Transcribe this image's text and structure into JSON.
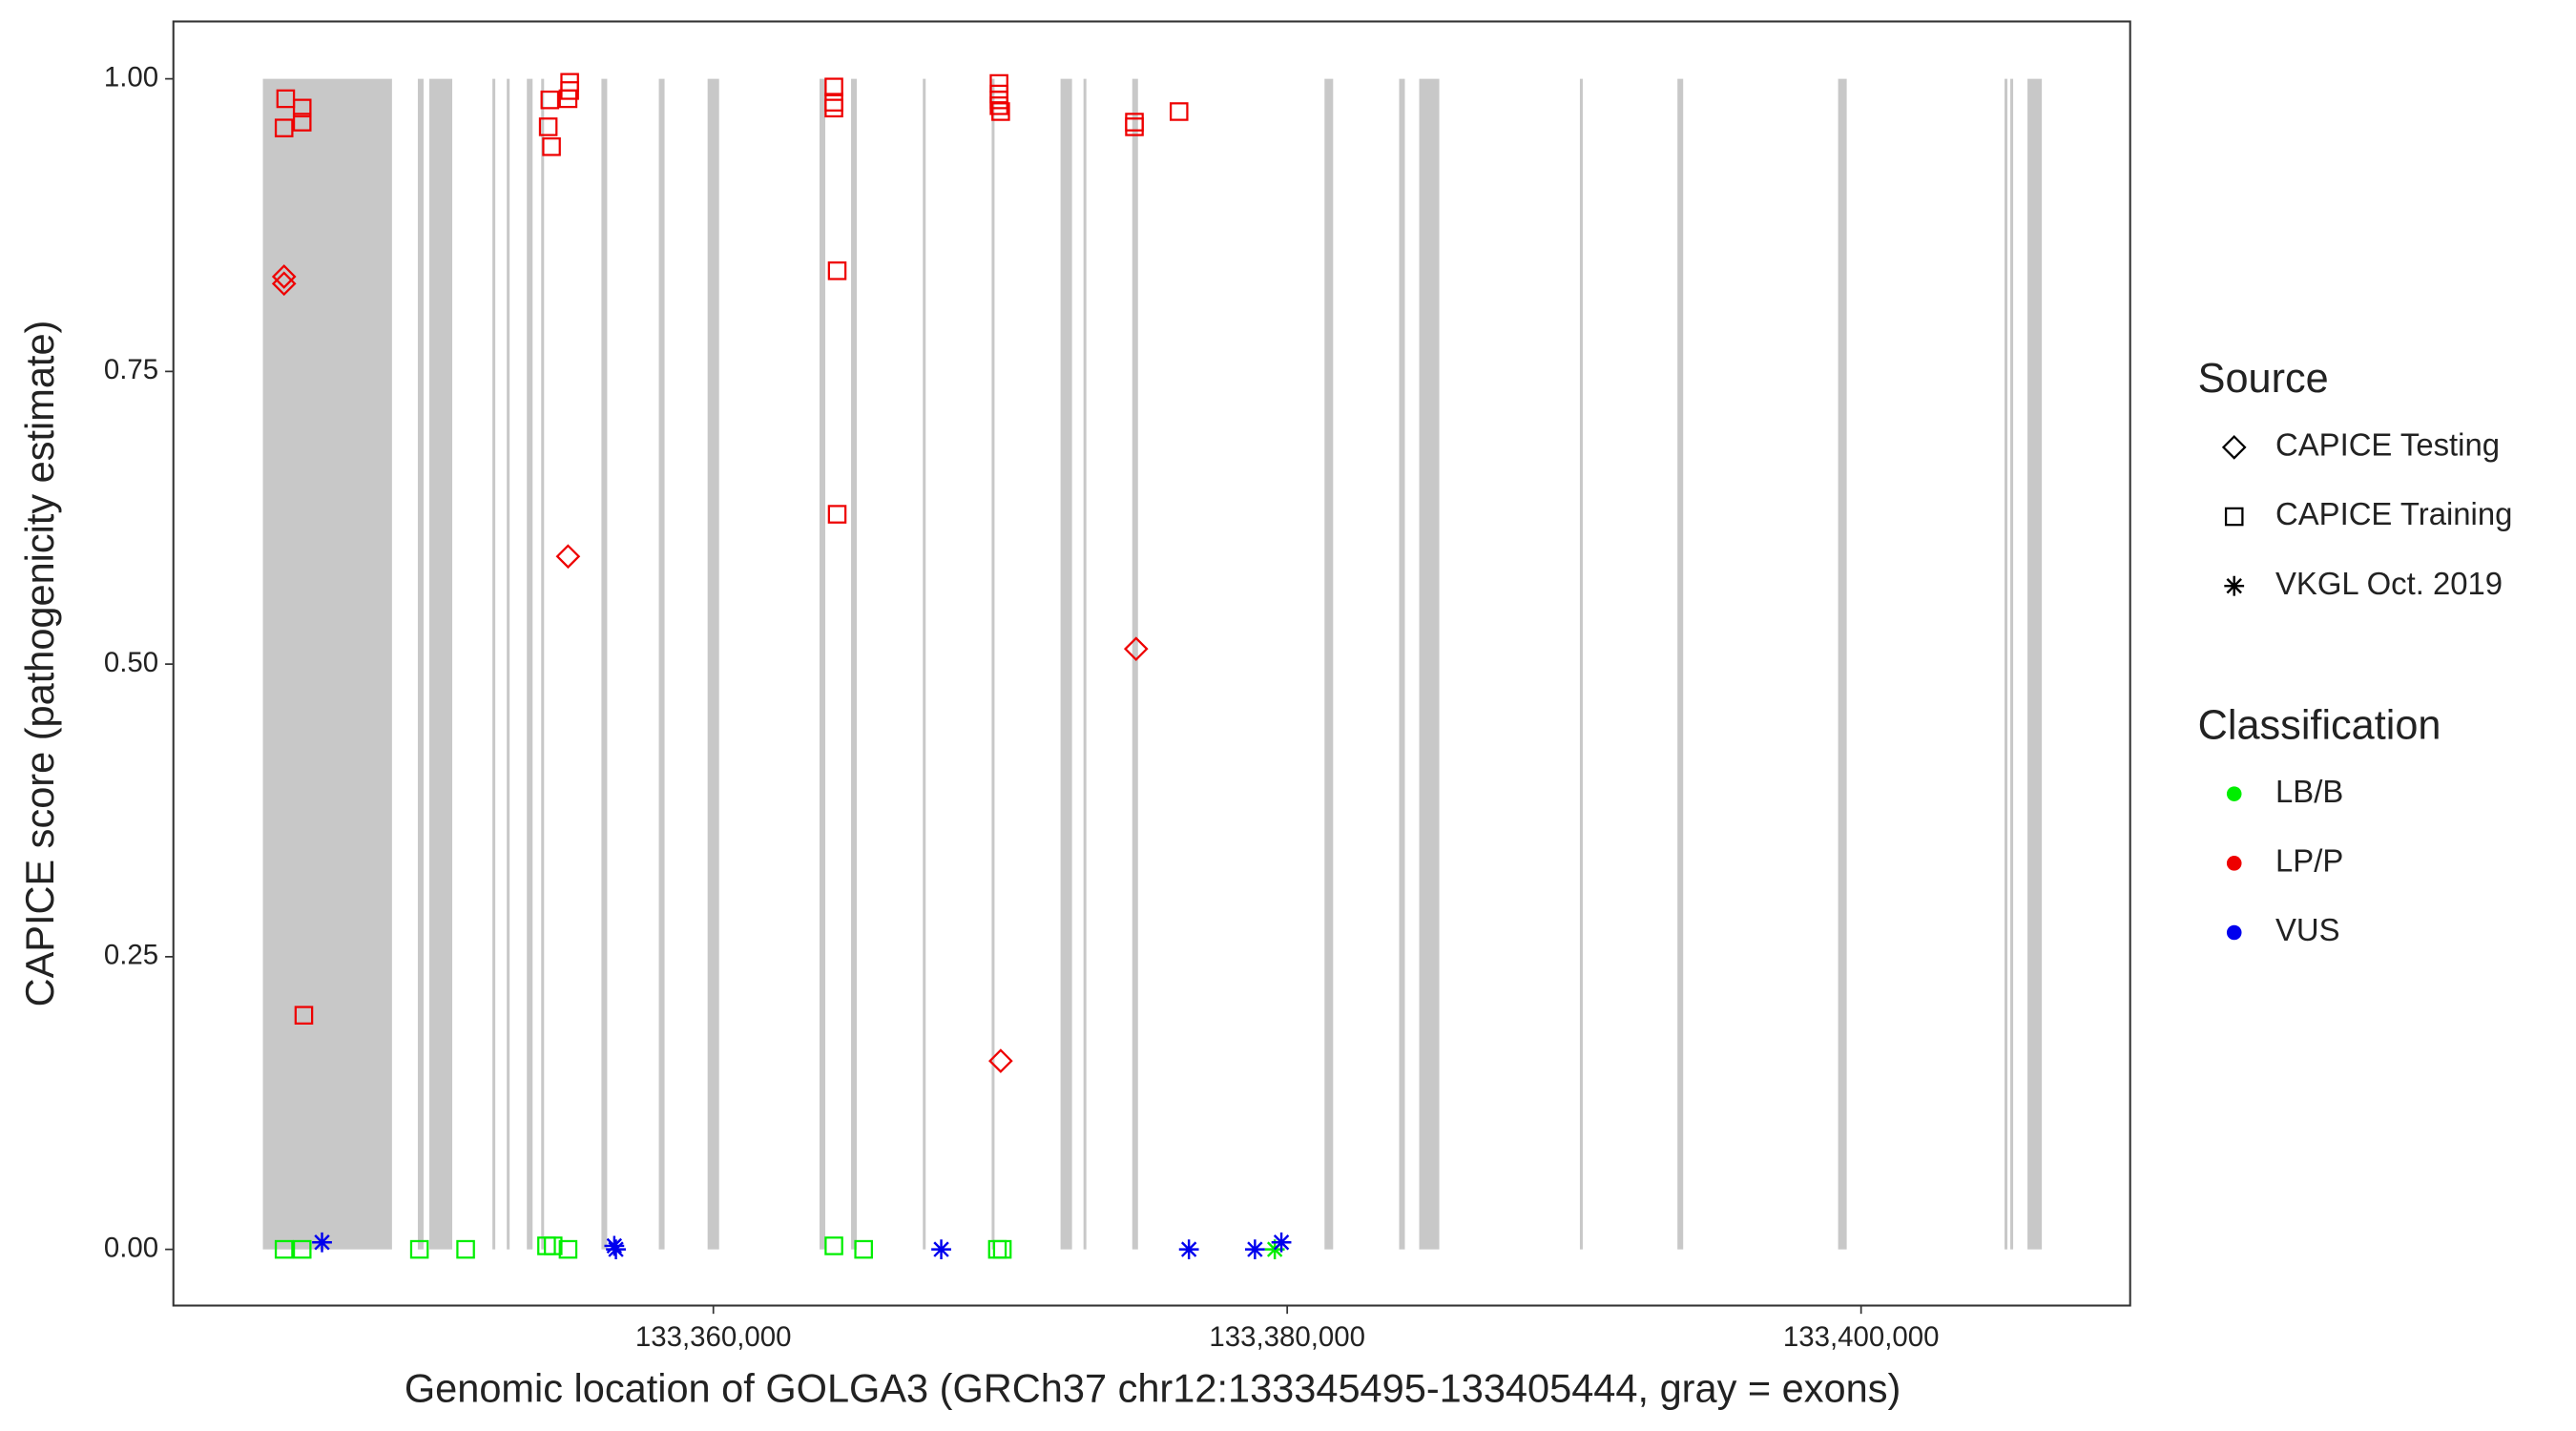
{
  "chart_data": {
    "type": "scatter",
    "x_label": "Genomic location of GOLGA3 (GRCh37 chr12:133345495-133405444, gray = exons)",
    "y_label": "CAPICE score (pathogenicity estimate)",
    "xlim": [
      133341181,
      133409378
    ],
    "ylim": [
      -0.048,
      1.049
    ],
    "xticks": [
      {
        "value": 133360000,
        "label": "133,360,000"
      },
      {
        "value": 133380000,
        "label": "133,380,000"
      },
      {
        "value": 133400000,
        "label": "133,400,000"
      }
    ],
    "yticks": [
      {
        "value": 0,
        "label": "0.00"
      },
      {
        "value": 0.25,
        "label": "0.25"
      },
      {
        "value": 0.5,
        "label": "0.50"
      },
      {
        "value": 0.75,
        "label": "0.75"
      },
      {
        "value": 1,
        "label": "1.00"
      }
    ],
    "exon_color": "#c8c8c8",
    "exons": [
      [
        133344300,
        133348800
      ],
      [
        133349700,
        133349900
      ],
      [
        133350100,
        133350900
      ],
      [
        133352300,
        133352400
      ],
      [
        133352800,
        133352900
      ],
      [
        133353500,
        133353700
      ],
      [
        133354000,
        133354100
      ],
      [
        133356100,
        133356300
      ],
      [
        133358100,
        133358300
      ],
      [
        133359800,
        133360200
      ],
      [
        133363700,
        133363900
      ],
      [
        133364800,
        133365000
      ],
      [
        133367300,
        133367400
      ],
      [
        133369700,
        133369800
      ],
      [
        133372100,
        133372500
      ],
      [
        133372900,
        133373000
      ],
      [
        133374600,
        133374800
      ],
      [
        133381300,
        133381600
      ],
      [
        133383900,
        133384100
      ],
      [
        133384600,
        133385300
      ],
      [
        133390200,
        133390300
      ],
      [
        133393600,
        133393800
      ],
      [
        133399200,
        133399500
      ],
      [
        133405000,
        133405100
      ],
      [
        133405200,
        133405300
      ],
      [
        133405800,
        133406300
      ]
    ],
    "legend_source_title": "Source",
    "legend_class_title": "Classification",
    "sources": [
      {
        "name": "CAPICE Testing",
        "shape": "diamond"
      },
      {
        "name": "CAPICE Training",
        "shape": "square"
      },
      {
        "name": "VKGL Oct. 2019",
        "shape": "asterisk"
      }
    ],
    "classifications": [
      {
        "name": "LB/B",
        "color": "#00ee00"
      },
      {
        "name": "LP/P",
        "color": "#ee0000"
      },
      {
        "name": "VUS",
        "color": "#0000ee"
      }
    ],
    "groups": [
      {
        "source": "CAPICE Training",
        "classification": "LP/P",
        "x": [
          133345095,
          133345038,
          133345670,
          133345670,
          133345728,
          133354245,
          133354302,
          133354360,
          133354993,
          133354993,
          133354936,
          133364201,
          133364201,
          133364201,
          133364316,
          133364316,
          133369956,
          133369956,
          133369956,
          133369956,
          133370014,
          133374675,
          133374675,
          133376229
        ],
        "y": [
          0.983,
          0.958,
          0.975,
          0.963,
          0.2,
          0.959,
          0.982,
          0.942,
          0.997,
          0.99,
          0.983,
          0.993,
          0.98,
          0.975,
          0.836,
          0.628,
          0.996,
          0.987,
          0.982,
          0.977,
          0.972,
          0.963,
          0.959,
          0.972
        ]
      },
      {
        "source": "CAPICE Testing",
        "classification": "LP/P",
        "x": [
          133345038,
          133345038,
          133354936,
          133374733,
          133370014
        ],
        "y": [
          0.831,
          0.825,
          0.592,
          0.513,
          0.161
        ]
      },
      {
        "source": "CAPICE Training",
        "classification": "LB/B",
        "x": [
          133345038,
          133345670,
          133349756,
          133351367,
          133354187,
          133354417,
          133354936,
          133364201,
          133365237,
          133369899,
          133370071
        ],
        "y": [
          0,
          0,
          0,
          0,
          0.003,
          0.003,
          0,
          0.003,
          0,
          0,
          0
        ]
      },
      {
        "source": "VKGL Oct. 2019",
        "classification": "LB/B",
        "x": [
          133379567
        ],
        "y": [
          0
        ]
      },
      {
        "source": "VKGL Oct. 2019",
        "classification": "VUS",
        "x": [
          133346361,
          133356547,
          133356604,
          133367942,
          133376574,
          133378876,
          133379797
        ],
        "y": [
          0.006,
          0.003,
          0,
          0,
          0,
          0,
          0.006
        ]
      }
    ]
  }
}
